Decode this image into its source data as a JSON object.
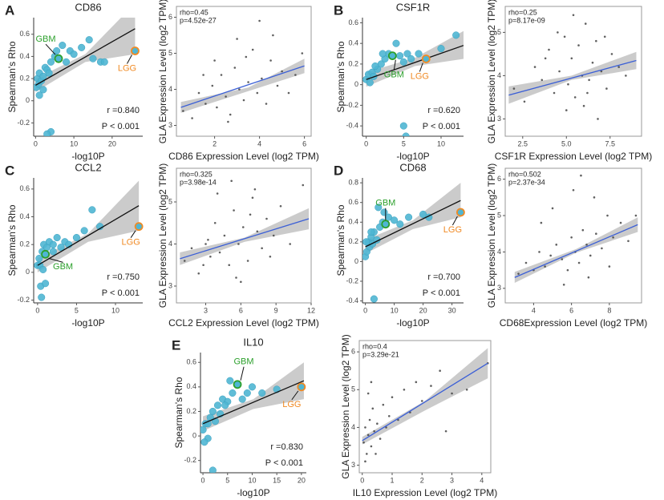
{
  "chart_data": [
    {
      "type": "scatter",
      "panel": "A",
      "title": "CD86",
      "xlabel": "-log10P",
      "ylabel": "Spearman's Rho",
      "frame": false,
      "color": "#4fb6d3",
      "fit_color": "#111111",
      "xlim": [
        -0.5,
        28
      ],
      "ylim": [
        -0.32,
        0.75
      ],
      "xticks": [
        0,
        10,
        20
      ],
      "yticks": [
        -0.2,
        0,
        0.2,
        0.4,
        0.6
      ],
      "x": [
        0.2,
        0.5,
        0.8,
        1,
        1.5,
        2,
        2.5,
        3,
        3.5,
        4,
        5,
        5.5,
        7,
        8,
        9,
        10,
        12,
        14,
        15,
        17,
        18,
        4,
        3,
        1,
        2
      ],
      "values": [
        0.12,
        0.2,
        0.15,
        0.25,
        0.18,
        0.22,
        0.3,
        0.28,
        0.25,
        0.35,
        0.4,
        0.45,
        0.5,
        0.35,
        0.45,
        0.42,
        0.48,
        0.55,
        0.38,
        0.35,
        0.35,
        -0.28,
        -0.3,
        0.05,
        0.1
      ],
      "fit": {
        "x": [
          0,
          26
        ],
        "y": [
          0.14,
          0.65
        ]
      },
      "band": {
        "x": [
          0,
          13,
          26
        ],
        "lower": [
          0.08,
          0.35,
          0.42
        ],
        "upper": [
          0.2,
          0.42,
          0.88
        ]
      },
      "highlights": [
        {
          "label": "GBM",
          "x": 6,
          "y": 0.38,
          "color": "#2ca02c"
        },
        {
          "label": "LGG",
          "x": 26,
          "y": 0.45,
          "color": "#f08a24"
        }
      ],
      "stats": [
        "r =0.840",
        "P < 0.001"
      ]
    },
    {
      "type": "scatter",
      "xlabel": "CD86 Expression Level (log2 TPM)",
      "ylabel": "GLA Expression Level (log2 TPM)",
      "frame": true,
      "color": "#444444",
      "fit_color": "#3b5fd6",
      "xlim": [
        0.3,
        6.3
      ],
      "ylim": [
        2.7,
        6.3
      ],
      "xticks": [
        2,
        4,
        6
      ],
      "yticks": [
        3,
        4,
        5,
        6
      ],
      "x": [
        0.6,
        1.0,
        1.3,
        1.6,
        1.9,
        2.1,
        2.3,
        2.5,
        2.7,
        2.9,
        3.1,
        3.3,
        3.5,
        3.7,
        3.9,
        4.1,
        4.3,
        4.5,
        4.8,
        5.0,
        5.3,
        5.6,
        5.9,
        2.0,
        3.0,
        4.0,
        2.6,
        3.4,
        1.5,
        4.6
      ],
      "values": [
        3.4,
        3.2,
        3.9,
        3.6,
        4.1,
        3.5,
        4.4,
        3.8,
        3.3,
        4.6,
        4.0,
        3.7,
        4.2,
        5.1,
        3.9,
        4.3,
        3.6,
        4.8,
        4.1,
        4.5,
        3.9,
        4.4,
        5.0,
        4.8,
        5.4,
        5.9,
        3.1,
        4.9,
        4.4,
        5.5
      ],
      "fit": {
        "x": [
          0.5,
          6
        ],
        "y": [
          3.5,
          4.65
        ]
      },
      "band": {
        "x": [
          0.5,
          3.5,
          6
        ],
        "lower": [
          3.35,
          3.95,
          4.45
        ],
        "upper": [
          3.65,
          4.05,
          4.85
        ]
      },
      "stats": [
        "rho=0.45",
        "p=4.52e-27"
      ]
    },
    {
      "type": "scatter",
      "panel": "B",
      "title": "CSF1R",
      "xlabel": "-log10P",
      "ylabel": "Spearman's Rho",
      "frame": false,
      "color": "#4fb6d3",
      "fit_color": "#111111",
      "xlim": [
        -0.5,
        13
      ],
      "ylim": [
        -0.5,
        0.65
      ],
      "xticks": [
        0,
        5,
        10
      ],
      "yticks": [
        -0.4,
        -0.2,
        0,
        0.2,
        0.4,
        0.6
      ],
      "x": [
        0,
        0.3,
        0.5,
        0.8,
        1,
        1.5,
        2,
        2.5,
        3,
        4,
        4.5,
        5,
        5.5,
        6,
        7,
        10,
        12,
        5,
        5.3,
        1.2,
        2.2
      ],
      "values": [
        0.05,
        0.1,
        0.02,
        0.12,
        0.08,
        0.15,
        0.2,
        0.25,
        0.3,
        0.4,
        0.28,
        0.22,
        0.3,
        0.25,
        0.3,
        0.35,
        0.48,
        -0.4,
        -0.5,
        0.18,
        0.3
      ],
      "fit": {
        "x": [
          0,
          13
        ],
        "y": [
          0.05,
          0.38
        ]
      },
      "band": {
        "x": [
          0,
          6.5,
          13
        ],
        "lower": [
          -0.02,
          0.18,
          0.25
        ],
        "upper": [
          0.12,
          0.26,
          0.52
        ]
      },
      "highlights": [
        {
          "label": "GBM",
          "x": 3.5,
          "y": 0.28,
          "color": "#2ca02c"
        },
        {
          "label": "LGG",
          "x": 8,
          "y": 0.25,
          "color": "#f08a24"
        }
      ],
      "stats": [
        "r =0.620",
        "P < 0.001"
      ]
    },
    {
      "type": "scatter",
      "xlabel": "CSF1R Expression Level (log2 TPM)",
      "ylabel": "GLA Expression Level (log2 TPM)",
      "frame": true,
      "color": "#444444",
      "fit_color": "#3b5fd6",
      "xlim": [
        1.5,
        9.3
      ],
      "ylim": [
        2.6,
        5.6
      ],
      "xticks": [
        2.5,
        {
          "value": 5,
          "label": "5.0"
        },
        7.5
      ],
      "yticks": [
        3,
        4,
        5
      ],
      "x": [
        2.0,
        2.6,
        3.2,
        3.6,
        4.0,
        4.3,
        4.6,
        4.9,
        5.1,
        5.3,
        5.5,
        5.7,
        5.9,
        6.1,
        6.3,
        6.5,
        6.7,
        7.0,
        7.3,
        7.6,
        8.0,
        8.4,
        5.0,
        6.0,
        4.5,
        6.8,
        5.4,
        7.2,
        3.8,
        6.2
      ],
      "values": [
        3.7,
        3.4,
        4.2,
        3.9,
        4.6,
        3.6,
        4.1,
        4.9,
        3.8,
        4.4,
        3.5,
        4.7,
        4.0,
        5.2,
        3.9,
        4.3,
        4.8,
        4.1,
        3.7,
        4.5,
        4.2,
        4.0,
        3.2,
        3.3,
        5.0,
        3.0,
        5.4,
        4.9,
        4.4,
        3.6
      ],
      "fit": {
        "x": [
          1.7,
          9
        ],
        "y": [
          3.55,
          4.35
        ]
      },
      "band": {
        "x": [
          1.7,
          5.3,
          9
        ],
        "lower": [
          3.35,
          3.9,
          4.15
        ],
        "upper": [
          3.75,
          4.0,
          4.55
        ]
      },
      "stats": [
        "rho=0.25",
        "p=8.17e-09"
      ]
    },
    {
      "type": "scatter",
      "panel": "C",
      "title": "CCL2",
      "xlabel": "-log10P",
      "ylabel": "Spearman's Rho",
      "frame": false,
      "color": "#4fb6d3",
      "fit_color": "#111111",
      "xlim": [
        -0.5,
        13.5
      ],
      "ylim": [
        -0.22,
        0.68
      ],
      "xticks": [
        0,
        5,
        10
      ],
      "yticks": [
        -0.2,
        0,
        0.2,
        0.4,
        0.6
      ],
      "x": [
        0,
        0.2,
        0.4,
        0.6,
        0.8,
        1.2,
        1.5,
        2,
        2.5,
        3,
        3.5,
        4,
        5,
        6,
        7,
        8,
        2,
        1,
        0.5,
        0.3,
        0.7
      ],
      "values": [
        0.05,
        0.1,
        -0.1,
        0.15,
        0.2,
        0.18,
        0.22,
        0.2,
        0.25,
        0.18,
        0.22,
        0.2,
        0.25,
        0.3,
        0.45,
        0.33,
        0.15,
        -0.08,
        -0.18,
        0.05,
        0.02
      ],
      "fit": {
        "x": [
          0,
          13
        ],
        "y": [
          0.05,
          0.48
        ]
      },
      "band": {
        "x": [
          0,
          6.5,
          13
        ],
        "lower": [
          0,
          0.22,
          0.3
        ],
        "upper": [
          0.1,
          0.28,
          0.66
        ]
      },
      "highlights": [
        {
          "label": "GBM",
          "x": 1,
          "y": 0.13,
          "color": "#2ca02c"
        },
        {
          "label": "LGG",
          "x": 13,
          "y": 0.33,
          "color": "#f08a24"
        }
      ],
      "stats": [
        "r =0.750",
        "P < 0.001"
      ]
    },
    {
      "type": "scatter",
      "xlabel": "CCL2 Expression Level (log2 TPM)",
      "ylabel": "GLA Expression Level (log2 TPM)",
      "frame": true,
      "color": "#444444",
      "fit_color": "#3b5fd6",
      "xlim": [
        0.5,
        12
      ],
      "ylim": [
        2.6,
        5.8
      ],
      "xticks": [
        3,
        6,
        9,
        12
      ],
      "yticks": [
        3,
        4,
        5
      ],
      "x": [
        1.2,
        1.8,
        2.4,
        3.0,
        3.4,
        3.8,
        4.2,
        4.6,
        5.0,
        5.4,
        5.8,
        6.2,
        6.6,
        7.0,
        7.4,
        7.8,
        8.2,
        8.8,
        9.4,
        10.2,
        11.3,
        4.0,
        5.2,
        6.0,
        3.2,
        7.2,
        5.6,
        8.5,
        2.8,
        6.8
      ],
      "values": [
        3.6,
        3.9,
        3.3,
        4.0,
        3.7,
        4.5,
        3.8,
        4.2,
        3.5,
        4.8,
        4.0,
        4.4,
        3.6,
        5.1,
        4.3,
        3.9,
        4.6,
        4.2,
        4.9,
        4.0,
        5.4,
        5.2,
        5.5,
        3.1,
        4.1,
        5.3,
        3.2,
        3.7,
        3.5,
        4.7
      ],
      "fit": {
        "x": [
          0.8,
          11.8
        ],
        "y": [
          3.65,
          4.6
        ]
      },
      "band": {
        "x": [
          0.8,
          6.3,
          11.8
        ],
        "lower": [
          3.5,
          4.05,
          4.35
        ],
        "upper": [
          3.8,
          4.15,
          4.85
        ]
      },
      "stats": [
        "rho=0.325",
        "p=3.98e-14"
      ]
    },
    {
      "type": "scatter",
      "panel": "D",
      "title": "CD68",
      "xlabel": "-log10P",
      "ylabel": "Spearman's Rho",
      "frame": false,
      "color": "#4fb6d3",
      "fit_color": "#111111",
      "xlim": [
        -1,
        34
      ],
      "ylim": [
        -0.42,
        0.85
      ],
      "xticks": [
        0,
        10,
        20,
        30
      ],
      "yticks": [
        -0.4,
        -0.2,
        0,
        0.2,
        0.4,
        0.6,
        0.8
      ],
      "x": [
        0,
        0.5,
        1,
        1.5,
        2,
        2.5,
        3,
        4,
        5,
        6,
        8,
        10,
        12,
        15,
        20,
        22,
        3,
        4.5,
        6.5,
        2,
        0.3
      ],
      "values": [
        0.05,
        0.1,
        0.2,
        0.15,
        0.25,
        0.18,
        0.3,
        0.22,
        0.35,
        0.4,
        0.45,
        0.42,
        0.38,
        0.45,
        0.48,
        0.45,
        -0.38,
        0.55,
        0.5,
        0.3,
        0.2
      ],
      "fit": {
        "x": [
          0,
          33
        ],
        "y": [
          0.15,
          0.62
        ]
      },
      "band": {
        "x": [
          0,
          16.5,
          33
        ],
        "lower": [
          0.08,
          0.33,
          0.45
        ],
        "upper": [
          0.22,
          0.42,
          0.8
        ]
      },
      "highlights": [
        {
          "label": "GBM",
          "x": 7,
          "y": 0.38,
          "color": "#2ca02c"
        },
        {
          "label": "LGG",
          "x": 33,
          "y": 0.5,
          "color": "#f08a24"
        }
      ],
      "stats": [
        "r =0.700",
        "P < 0.001"
      ]
    },
    {
      "type": "scatter",
      "xlabel": "CD68Expression Level (log2 TPM)",
      "ylabel": "GLA Expression Level (log2 TPM)",
      "frame": true,
      "color": "#444444",
      "fit_color": "#3b5fd6",
      "xlim": [
        2.5,
        9.7
      ],
      "ylim": [
        2.6,
        6.3
      ],
      "xticks": [
        4,
        6,
        8
      ],
      "yticks": [
        3,
        4,
        5,
        6
      ],
      "x": [
        3.2,
        3.6,
        4.0,
        4.3,
        4.6,
        4.9,
        5.2,
        5.5,
        5.8,
        6.0,
        6.2,
        6.4,
        6.6,
        6.8,
        7.0,
        7.3,
        7.6,
        7.9,
        8.2,
        8.6,
        9.0,
        9.4,
        5.0,
        6.5,
        7.2,
        5.6,
        8.0,
        4.4,
        6.9,
        6.1
      ],
      "values": [
        3.4,
        3.7,
        3.5,
        4.0,
        3.6,
        3.9,
        4.2,
        3.8,
        3.5,
        4.4,
        4.0,
        3.7,
        4.6,
        4.2,
        3.9,
        4.5,
        4.1,
        5.0,
        4.4,
        4.8,
        4.3,
        5.0,
        5.2,
        6.1,
        5.5,
        3.1,
        3.6,
        4.8,
        3.3,
        5.7
      ],
      "fit": {
        "x": [
          3,
          9.5
        ],
        "y": [
          3.3,
          4.75
        ]
      },
      "band": {
        "x": [
          3,
          6.25,
          9.5
        ],
        "lower": [
          3.15,
          3.98,
          4.55
        ],
        "upper": [
          3.45,
          4.08,
          4.95
        ]
      },
      "stats": [
        "rho=0.502",
        "p=2.37e-34"
      ]
    },
    {
      "type": "scatter",
      "panel": "E",
      "title": "IL10",
      "xlabel": "-log10P",
      "ylabel": "Spearman's Rho",
      "frame": false,
      "color": "#4fb6d3",
      "fit_color": "#111111",
      "xlim": [
        -0.5,
        21
      ],
      "ylim": [
        -0.3,
        0.68
      ],
      "xticks": [
        0,
        5,
        10,
        15,
        20
      ],
      "yticks": [
        -0.2,
        0,
        0.2,
        0.4,
        0.6
      ],
      "x": [
        0,
        0.5,
        1,
        1.5,
        2,
        2.5,
        3,
        3.5,
        4,
        5,
        6,
        8,
        9,
        10,
        12,
        15,
        2,
        1,
        0.3,
        5.5,
        4.5
      ],
      "values": [
        0.05,
        0.1,
        -0.02,
        0.15,
        0.2,
        0.12,
        0.25,
        0.18,
        0.3,
        0.28,
        0.35,
        0.3,
        0.35,
        0.4,
        0.35,
        0.38,
        -0.28,
        0.1,
        -0.05,
        0.45,
        0.25
      ],
      "fit": {
        "x": [
          0,
          20.5
        ],
        "y": [
          0.1,
          0.45
        ]
      },
      "band": {
        "x": [
          0,
          10.25,
          20.5
        ],
        "lower": [
          0.04,
          0.22,
          0.3
        ],
        "upper": [
          0.16,
          0.3,
          0.6
        ]
      },
      "highlights": [
        {
          "label": "GBM",
          "x": 7,
          "y": 0.42,
          "color": "#2ca02c"
        },
        {
          "label": "LGG",
          "x": 20,
          "y": 0.4,
          "color": "#f08a24"
        }
      ],
      "stats": [
        "r =0.830",
        "P < 0.001"
      ]
    },
    {
      "type": "scatter",
      "xlabel": "IL10 Expression Level (log2 TPM)",
      "ylabel": "GLA Expression Level (log2 TPM)",
      "frame": true,
      "color": "#444444",
      "fit_color": "#3b5fd6",
      "xlim": [
        -0.1,
        4.3
      ],
      "ylim": [
        2.8,
        6.3
      ],
      "xticks": [
        0,
        1,
        2,
        3,
        4
      ],
      "yticks": [
        3,
        4,
        5,
        6
      ],
      "x": [
        0.05,
        0.1,
        0.15,
        0.2,
        0.25,
        0.3,
        0.35,
        0.4,
        0.5,
        0.6,
        0.7,
        0.8,
        0.9,
        1.0,
        1.2,
        1.4,
        1.6,
        1.8,
        2.0,
        2.3,
        2.6,
        3.0,
        3.5,
        4.2,
        0.1,
        0.3,
        0.2,
        0.45,
        1.1,
        2.8
      ],
      "values": [
        3.6,
        4.0,
        3.3,
        3.8,
        4.2,
        3.5,
        4.5,
        3.9,
        4.1,
        3.7,
        4.6,
        4.0,
        4.3,
        4.8,
        4.2,
        5.0,
        4.4,
        5.2,
        4.7,
        5.1,
        5.5,
        4.9,
        5.0,
        5.7,
        3.1,
        5.2,
        4.9,
        3.3,
        6.1,
        3.9
      ],
      "fit": {
        "x": [
          0,
          4.2
        ],
        "y": [
          3.65,
          5.7
        ]
      },
      "band": {
        "x": [
          0,
          2.1,
          4.2
        ],
        "lower": [
          3.55,
          4.45,
          5.3
        ],
        "upper": [
          3.75,
          4.7,
          6.1
        ]
      },
      "stats": [
        "rho=0.4",
        "p=3.29e-21"
      ]
    }
  ]
}
